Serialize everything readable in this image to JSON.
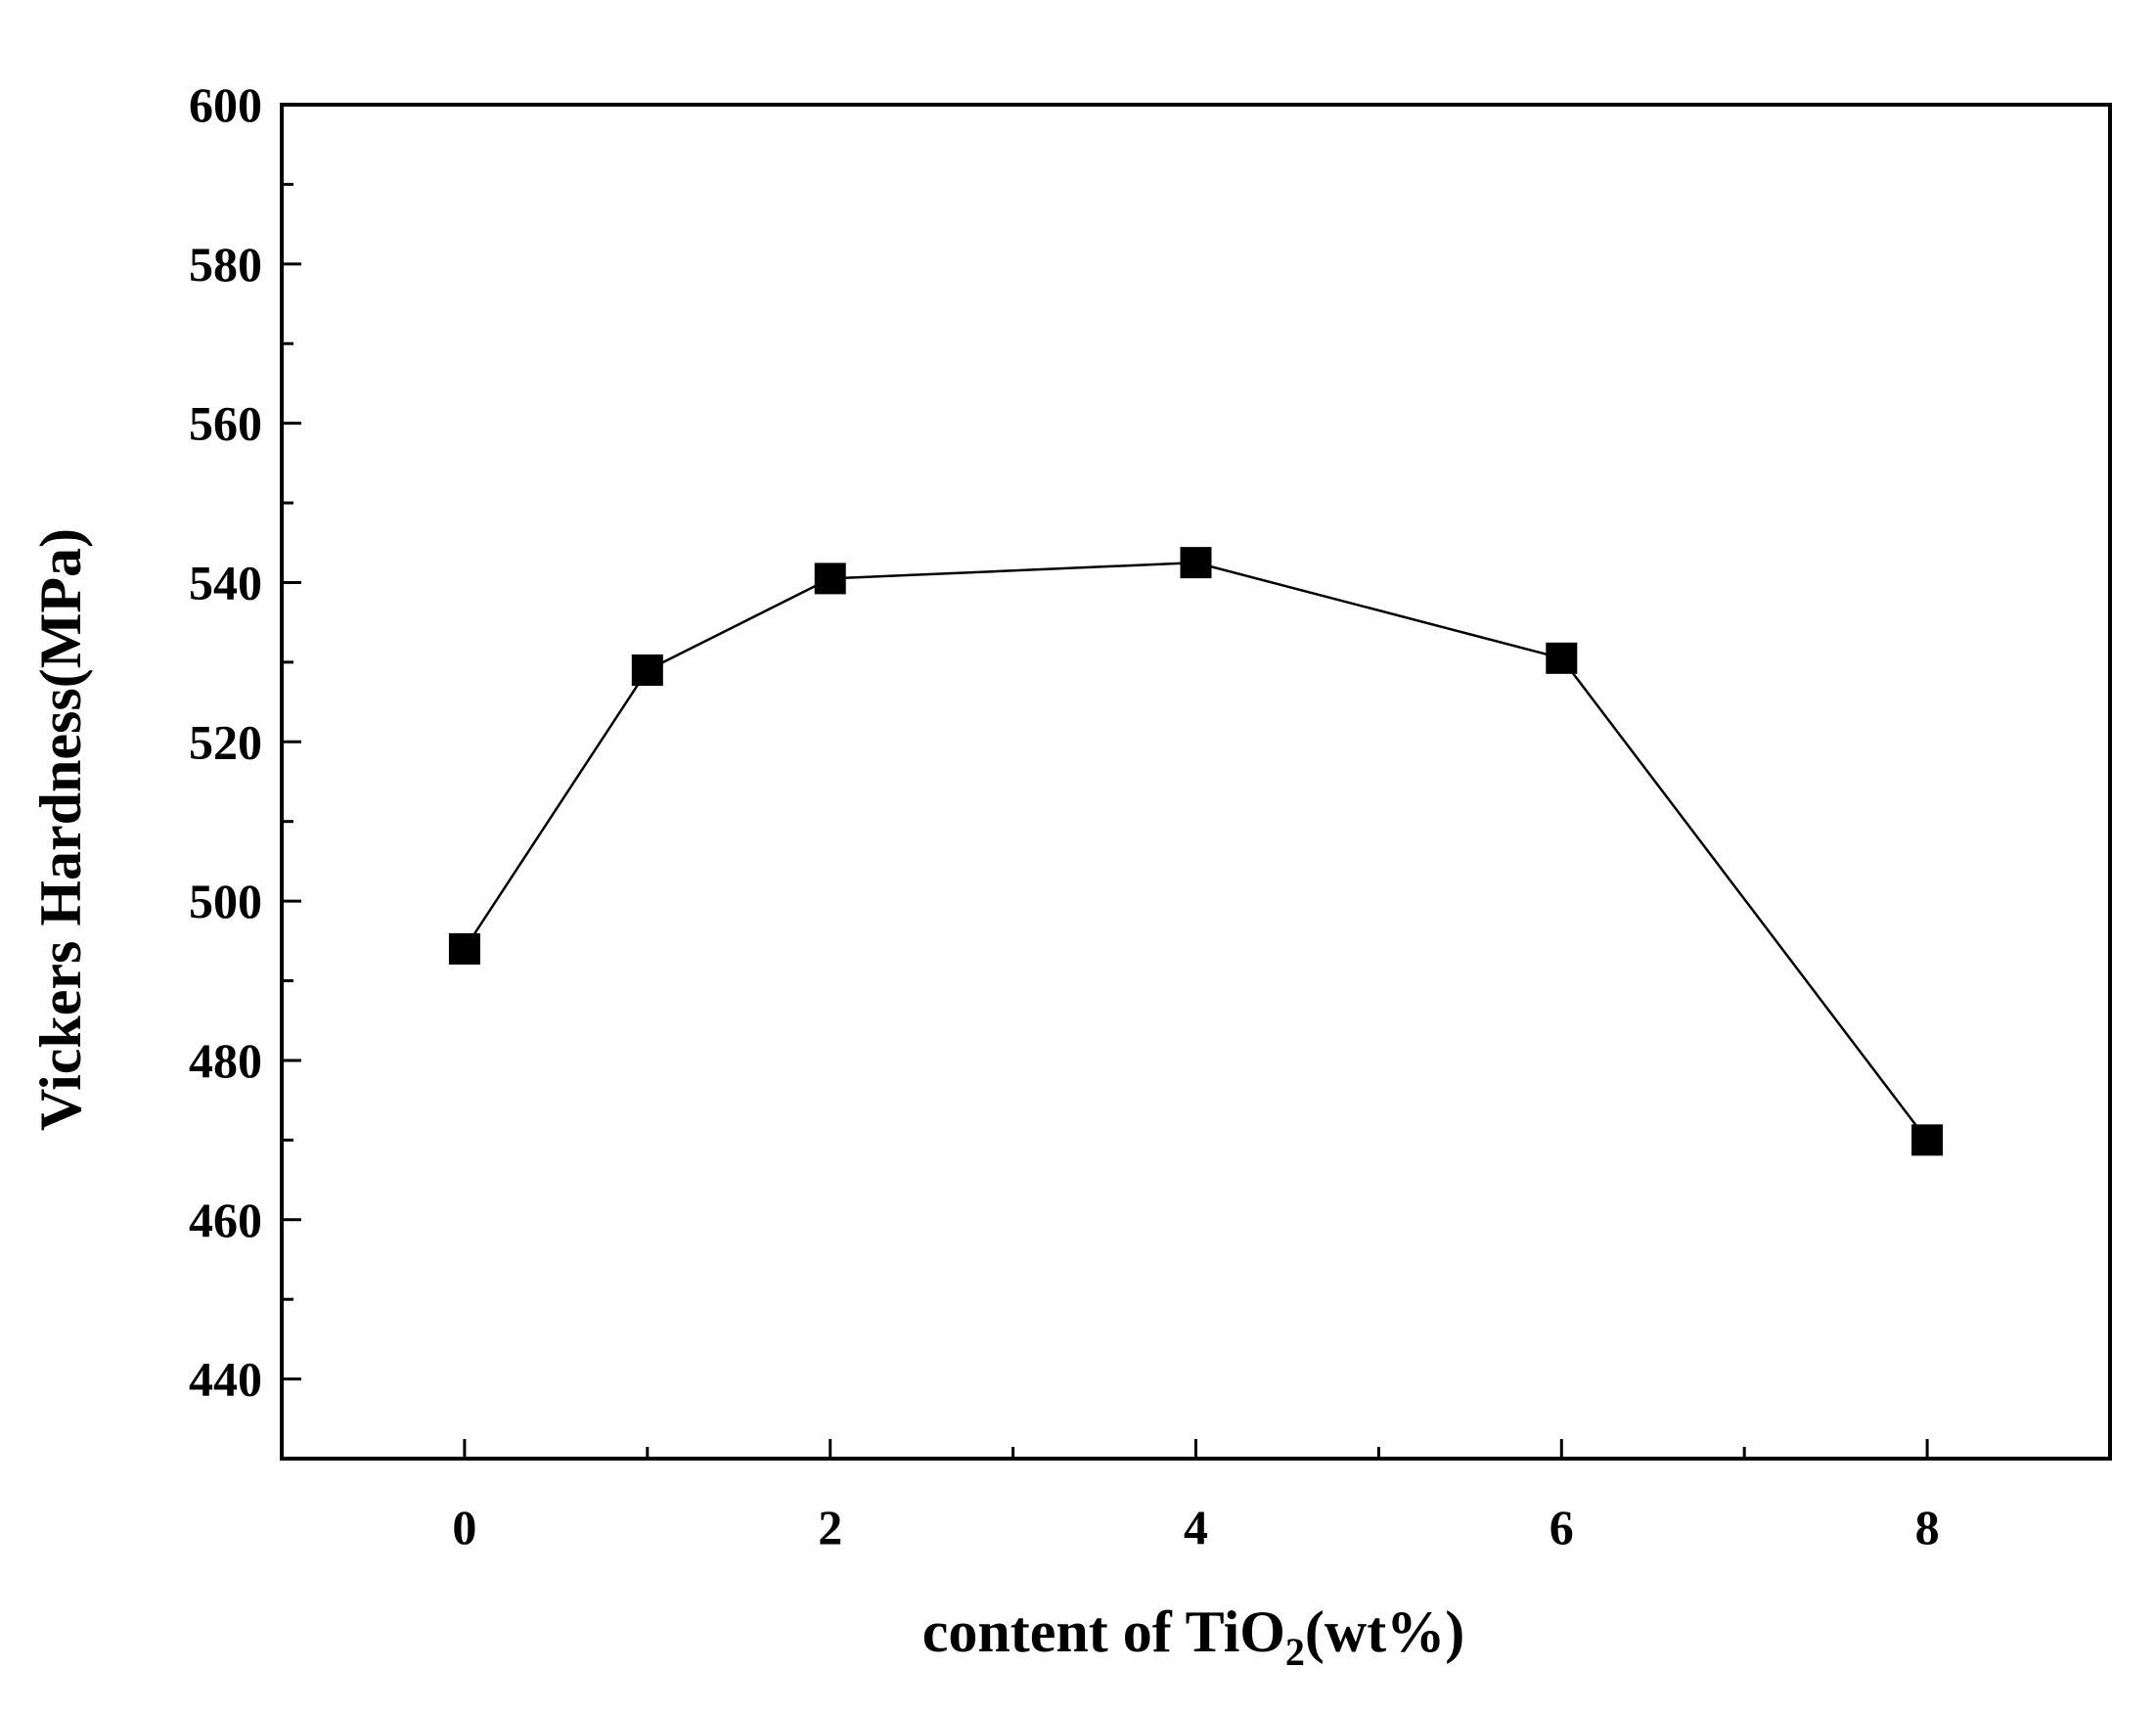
{
  "chart_data": {
    "type": "line",
    "xlabel": {
      "main": "content of TiO",
      "subscript": "2",
      "suffix": "(wt%)"
    },
    "ylabel": "Vickers Hardness(MPa)",
    "xlim": [
      -1,
      9
    ],
    "ylim": [
      430,
      600
    ],
    "x_ticks": [
      0,
      2,
      4,
      6,
      8
    ],
    "x_minor_ticks": [
      1,
      3,
      5,
      7
    ],
    "y_ticks": [
      440,
      460,
      480,
      500,
      520,
      540,
      560,
      580,
      600
    ],
    "y_minor_ticks": [
      450,
      470,
      490,
      510,
      530,
      550,
      570,
      590
    ],
    "grid": false,
    "series": [
      {
        "marker": "square",
        "color": "#000000",
        "x": [
          0,
          1,
          2,
          4,
          6,
          8
        ],
        "y": [
          494,
          529,
          540.5,
          542.5,
          530.5,
          470
        ]
      }
    ]
  }
}
